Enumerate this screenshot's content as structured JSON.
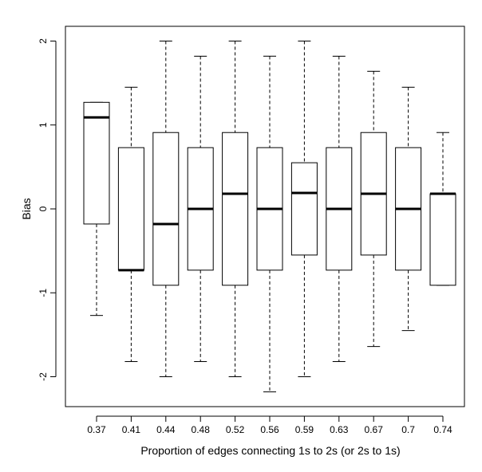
{
  "chart_data": {
    "type": "boxplot",
    "title": "",
    "xlabel": "Proportion of edges connecting 1s to 2s (or 2s to 1s)",
    "ylabel": "Bias",
    "ylim": [
      -2.3,
      2.15
    ],
    "yticks": [
      -2,
      -1,
      0,
      1,
      2
    ],
    "yticks_rotated": true,
    "grid": false,
    "legend": "none",
    "categories": [
      "0.37",
      "0.41",
      "0.44",
      "0.48",
      "0.52",
      "0.56",
      "0.59",
      "0.63",
      "0.67",
      "0.7",
      "0.74"
    ],
    "boxes": [
      {
        "category": "0.37",
        "whisker_low": -1.27,
        "q1": -0.18,
        "median": 1.09,
        "q3": 1.27,
        "whisker_high": 1.27
      },
      {
        "category": "0.41",
        "whisker_low": -1.82,
        "q1": -0.73,
        "median": -0.73,
        "q3": 0.73,
        "whisker_high": 1.45
      },
      {
        "category": "0.44",
        "whisker_low": -2.0,
        "q1": -0.91,
        "median": -0.18,
        "q3": 0.91,
        "whisker_high": 2.0
      },
      {
        "category": "0.48",
        "whisker_low": -1.82,
        "q1": -0.73,
        "median": 0.0,
        "q3": 0.73,
        "whisker_high": 1.82
      },
      {
        "category": "0.52",
        "whisker_low": -2.0,
        "q1": -0.91,
        "median": 0.18,
        "q3": 0.91,
        "whisker_high": 2.0
      },
      {
        "category": "0.56",
        "whisker_low": -2.18,
        "q1": -0.73,
        "median": 0.0,
        "q3": 0.73,
        "whisker_high": 1.82
      },
      {
        "category": "0.59",
        "whisker_low": -2.0,
        "q1": -0.55,
        "median": 0.19,
        "q3": 0.55,
        "whisker_high": 2.0
      },
      {
        "category": "0.63",
        "whisker_low": -1.82,
        "q1": -0.73,
        "median": 0.0,
        "q3": 0.73,
        "whisker_high": 1.82
      },
      {
        "category": "0.67",
        "whisker_low": -1.64,
        "q1": -0.55,
        "median": 0.18,
        "q3": 0.91,
        "whisker_high": 1.64
      },
      {
        "category": "0.7",
        "whisker_low": -1.45,
        "q1": -0.73,
        "median": 0.0,
        "q3": 0.73,
        "whisker_high": 1.45
      },
      {
        "category": "0.74",
        "whisker_low": -0.91,
        "q1": -0.91,
        "median": 0.18,
        "q3": 0.18,
        "whisker_high": 0.91
      }
    ]
  }
}
